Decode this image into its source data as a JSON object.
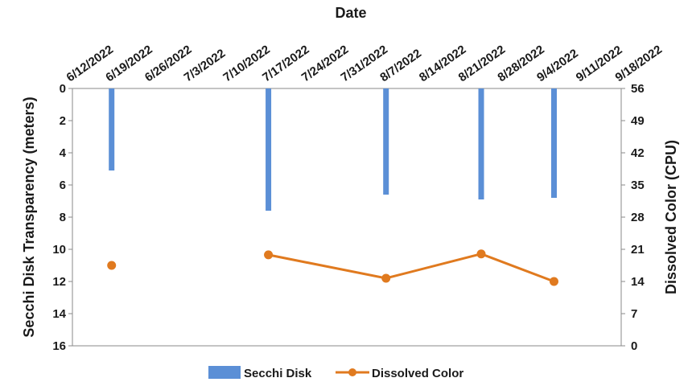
{
  "chart_data": {
    "type": "bar+line",
    "title": "",
    "xlabel": "Date",
    "ylabel_left": "Secchi Disk Transparency (meters)",
    "ylabel_right": "Dissolved Color (CPU)",
    "x_ticks": [
      "6/12/2022",
      "6/19/2022",
      "6/26/2022",
      "7/3/2022",
      "7/10/2022",
      "7/17/2022",
      "7/24/2022",
      "7/31/2022",
      "8/7/2022",
      "8/14/2022",
      "8/21/2022",
      "8/28/2022",
      "9/4/2022",
      "9/11/2022",
      "9/18/2022"
    ],
    "xlim": [
      "6/12/2022",
      "9/18/2022"
    ],
    "ylim_left": [
      0,
      16
    ],
    "y_left_reversed": true,
    "y_left_ticks": [
      0,
      2,
      4,
      6,
      8,
      10,
      12,
      14,
      16
    ],
    "ylim_right": [
      0,
      56
    ],
    "y_right_ticks": [
      56,
      49,
      42,
      35,
      28,
      21,
      14,
      7,
      0
    ],
    "grid": false,
    "legend_placement": "bottom",
    "series": [
      {
        "name": "Secchi Disk",
        "type": "bar",
        "axis": "left",
        "color": "#5b8fd6",
        "points": [
          {
            "x": "6/19/2022",
            "y": 5.1
          },
          {
            "x": "7/17/2022",
            "y": 7.6
          },
          {
            "x": "8/7/2022",
            "y": 6.6
          },
          {
            "x": "8/24/2022",
            "y": 6.9
          },
          {
            "x": "9/6/2022",
            "y": 6.8
          }
        ]
      },
      {
        "name": "Dissolved Color",
        "type": "line",
        "axis": "right",
        "color": "#e07a1f",
        "points": [
          {
            "x": "6/19/2022",
            "y": 17.5,
            "connected": false
          },
          {
            "x": "7/17/2022",
            "y": 19.8,
            "connected": true
          },
          {
            "x": "8/7/2022",
            "y": 14.7,
            "connected": true
          },
          {
            "x": "8/24/2022",
            "y": 20.0,
            "connected": true
          },
          {
            "x": "9/6/2022",
            "y": 14.0,
            "connected": true
          }
        ]
      }
    ]
  }
}
